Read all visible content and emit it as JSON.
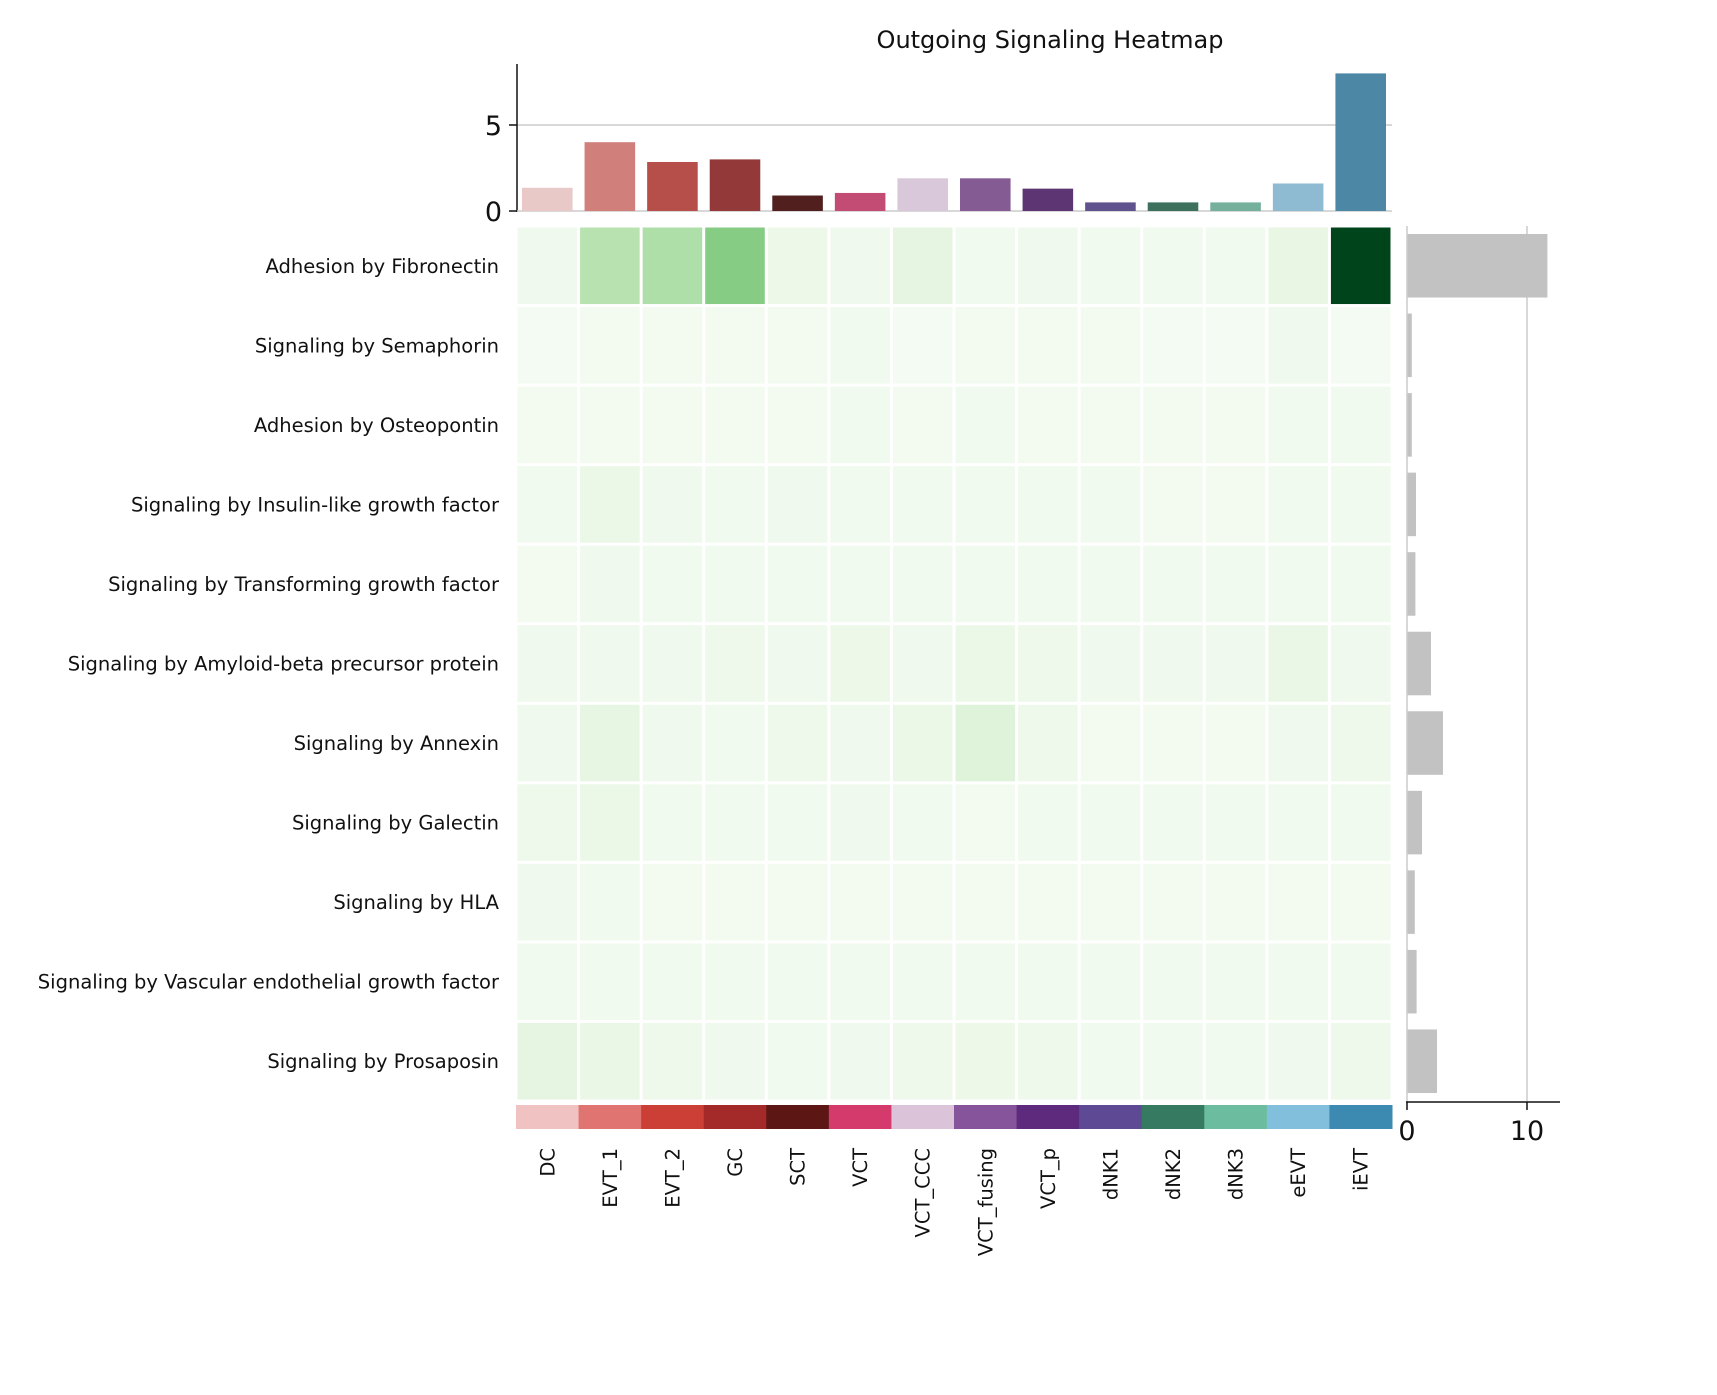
{
  "chart_data": {
    "type": "heatmap",
    "title": "Outgoing Signaling Heatmap",
    "columns": [
      "DC",
      "EVT_1",
      "EVT_2",
      "GC",
      "SCT",
      "VCT",
      "VCT_CCC",
      "VCT_fusing",
      "VCT_p",
      "dNK1",
      "dNK2",
      "dNK3",
      "eEVT",
      "iEVT"
    ],
    "column_colors": [
      "#f0c2c2",
      "#e07470",
      "#cc3f36",
      "#a32a29",
      "#5c1715",
      "#d43a6c",
      "#dbc3da",
      "#86549a",
      "#5e2a7e",
      "#5e4a94",
      "#357a61",
      "#6cbd9f",
      "#82bfdd",
      "#3c8ab2"
    ],
    "top_bar_colors": [
      "#e8c9c8",
      "#d07f7b",
      "#b64e49",
      "#933939",
      "#511f1d",
      "#c24c74",
      "#d9c7da",
      "#845b93",
      "#5d3573",
      "#5f528d",
      "#3d705d",
      "#75b09c",
      "#8ebbd2",
      "#4d87a6"
    ],
    "rows": [
      "Adhesion by Fibronectin",
      "Signaling by Semaphorin",
      "Adhesion by Osteopontin",
      "Signaling by Insulin-like growth factor",
      "Signaling by Transforming growth factor",
      "Signaling by Amyloid-beta precursor protein",
      "Signaling by Annexin",
      "Signaling by Galectin",
      "Signaling by HLA",
      "Signaling by Vascular endothelial growth factor",
      "Signaling by Prosaposin"
    ],
    "values": [
      [
        0.05,
        0.3,
        0.33,
        0.45,
        0.07,
        0.05,
        0.12,
        0.04,
        0.05,
        0.04,
        0.04,
        0.04,
        0.1,
        1.0
      ],
      [
        0.02,
        0.03,
        0.03,
        0.03,
        0.03,
        0.04,
        0.02,
        0.03,
        0.03,
        0.03,
        0.02,
        0.02,
        0.05,
        0.02
      ],
      [
        0.03,
        0.03,
        0.03,
        0.03,
        0.03,
        0.04,
        0.03,
        0.04,
        0.03,
        0.03,
        0.03,
        0.03,
        0.04,
        0.04
      ],
      [
        0.04,
        0.08,
        0.05,
        0.04,
        0.05,
        0.04,
        0.04,
        0.04,
        0.04,
        0.04,
        0.03,
        0.03,
        0.04,
        0.04
      ],
      [
        0.03,
        0.05,
        0.04,
        0.04,
        0.04,
        0.04,
        0.04,
        0.04,
        0.04,
        0.04,
        0.04,
        0.04,
        0.04,
        0.04
      ],
      [
        0.05,
        0.05,
        0.05,
        0.06,
        0.05,
        0.07,
        0.05,
        0.08,
        0.06,
        0.05,
        0.05,
        0.05,
        0.09,
        0.05
      ],
      [
        0.05,
        0.11,
        0.05,
        0.04,
        0.06,
        0.05,
        0.08,
        0.15,
        0.06,
        0.03,
        0.03,
        0.03,
        0.05,
        0.06
      ],
      [
        0.06,
        0.08,
        0.04,
        0.04,
        0.04,
        0.05,
        0.04,
        0.03,
        0.04,
        0.04,
        0.04,
        0.04,
        0.04,
        0.04
      ],
      [
        0.05,
        0.04,
        0.03,
        0.03,
        0.03,
        0.03,
        0.03,
        0.03,
        0.03,
        0.03,
        0.03,
        0.03,
        0.03,
        0.03
      ],
      [
        0.04,
        0.04,
        0.04,
        0.04,
        0.04,
        0.04,
        0.04,
        0.04,
        0.04,
        0.04,
        0.04,
        0.04,
        0.04,
        0.04
      ],
      [
        0.12,
        0.09,
        0.06,
        0.05,
        0.04,
        0.05,
        0.06,
        0.07,
        0.06,
        0.04,
        0.04,
        0.04,
        0.05,
        0.06
      ]
    ],
    "colormap": "Greens",
    "top_bars": {
      "values": [
        1.35,
        4.0,
        2.85,
        3.0,
        0.9,
        1.05,
        1.9,
        1.9,
        1.3,
        0.5,
        0.5,
        0.5,
        1.6,
        8.0
      ],
      "ylim": [
        0,
        8.3
      ],
      "ticks": [
        "0",
        "5"
      ],
      "tick_values": [
        0,
        5
      ],
      "gridline_at": 5
    },
    "right_bars": {
      "values": [
        11.7,
        0.4,
        0.4,
        0.75,
        0.7,
        2.0,
        3.0,
        1.25,
        0.65,
        0.8,
        2.5
      ],
      "xlim": [
        0,
        12
      ],
      "ticks": [
        "0",
        "10"
      ],
      "tick_values": [
        0,
        10
      ],
      "gridline_at": 10,
      "bar_color": "#c2c2c2"
    }
  }
}
